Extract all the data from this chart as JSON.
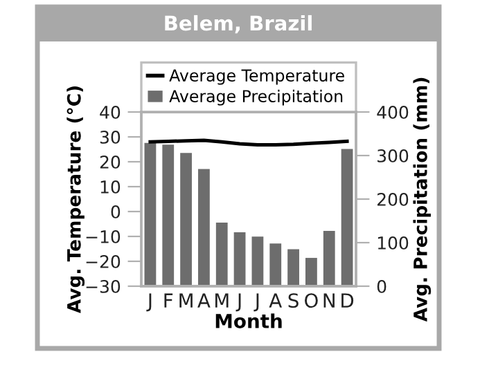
{
  "chart_data": {
    "type": "bar",
    "title": "Belem, Brazil",
    "xlabel": "Month",
    "ylabel": "Avg. Temperature (°C)",
    "y2label": "Avg. Precipitation (mm)",
    "categories": [
      "J",
      "F",
      "M",
      "A",
      "M",
      "J",
      "J",
      "A",
      "S",
      "O",
      "N",
      "D"
    ],
    "series": [
      {
        "name": "Average Temperature",
        "type": "line",
        "color": "#000000",
        "values": [
          28,
          28.2,
          28.4,
          28.6,
          28,
          27.2,
          26.8,
          26.8,
          27,
          27.4,
          27.8,
          28.2
        ]
      },
      {
        "name": "Average Precipitation",
        "axis": "y2",
        "color": "#6d6d6d",
        "values": [
          329,
          325,
          306,
          269,
          146,
          124,
          114,
          98,
          85,
          65,
          127,
          315
        ]
      }
    ],
    "ylim": [
      -30,
      40
    ],
    "yticks": [
      -30,
      -20,
      -10,
      0,
      10,
      20,
      30,
      40
    ],
    "y2lim": [
      0,
      400
    ],
    "y2ticks": [
      0,
      100,
      200,
      300,
      400
    ],
    "grid": false,
    "legend": "top"
  }
}
